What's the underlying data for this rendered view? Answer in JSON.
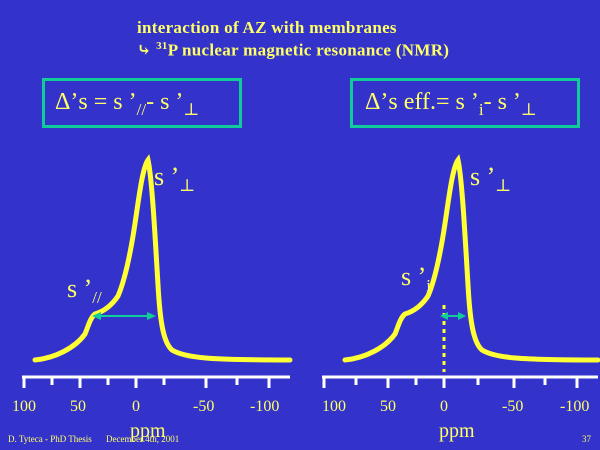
{
  "header": {
    "line1": "interaction of AZ with membranes",
    "line2_arrow": "⤷",
    "line2_sup": "31",
    "line2_rest": "P nuclear magnetic resonance (NMR)"
  },
  "left_panel": {
    "formula": "Δ’s = s ’",
    "formula_sub1": "//",
    "formula_mid": "- s ’",
    "formula_sub2": "⊥",
    "label_perp": "s ’",
    "label_perp_sub": "⊥",
    "label_par": "s ’",
    "label_par_sub": "//"
  },
  "right_panel": {
    "formula": "Δ’s eff.= s ’",
    "formula_sub1": "i",
    "formula_mid": "- s ’",
    "formula_sub2": "⊥",
    "label_perp": "s ’",
    "label_perp_sub": "⊥",
    "label_i": "s ’",
    "label_i_sub": "i"
  },
  "axis": {
    "ticks": [
      "100",
      "50",
      "0",
      "-50",
      "-100"
    ],
    "unit": "ppm"
  },
  "footer": {
    "author": "D. Tyteca - PhD Thesis",
    "date": "December 4th, 2001",
    "page": "37"
  },
  "colors": {
    "background": "#3333cc",
    "text": "#ffff66",
    "spectrum": "#ffff33",
    "box_border": "#11cc99",
    "arrow": "#11cc99"
  }
}
